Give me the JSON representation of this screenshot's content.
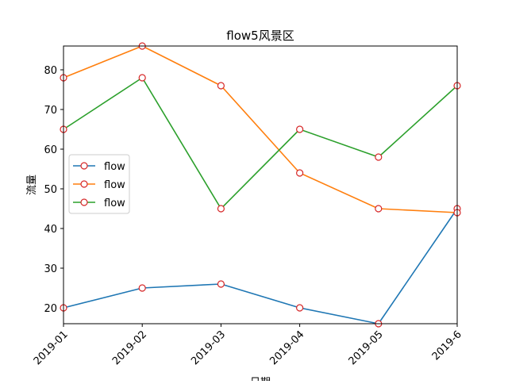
{
  "chart_data": {
    "type": "line",
    "title": "flow5风景区",
    "xlabel": "日期",
    "ylabel": "流量",
    "categories": [
      "2019-01",
      "2019-02",
      "2019-03",
      "2019-04",
      "2019-05",
      "2019-6"
    ],
    "ylim": [
      16,
      86
    ],
    "yticks": [
      20,
      30,
      40,
      50,
      60,
      70,
      80
    ],
    "grid": false,
    "legend_position": "center-left",
    "marker": {
      "shape": "circle",
      "edge_color": "#d62728",
      "face_color": "#ffffff"
    },
    "series": [
      {
        "name": "flow",
        "color": "#1f77b4",
        "values": [
          20,
          25,
          26,
          20,
          16,
          45
        ]
      },
      {
        "name": "flow",
        "color": "#ff7f0e",
        "values": [
          78,
          86,
          76,
          54,
          45,
          44
        ]
      },
      {
        "name": "flow",
        "color": "#2ca02c",
        "values": [
          65,
          78,
          45,
          65,
          58,
          76
        ]
      }
    ]
  }
}
